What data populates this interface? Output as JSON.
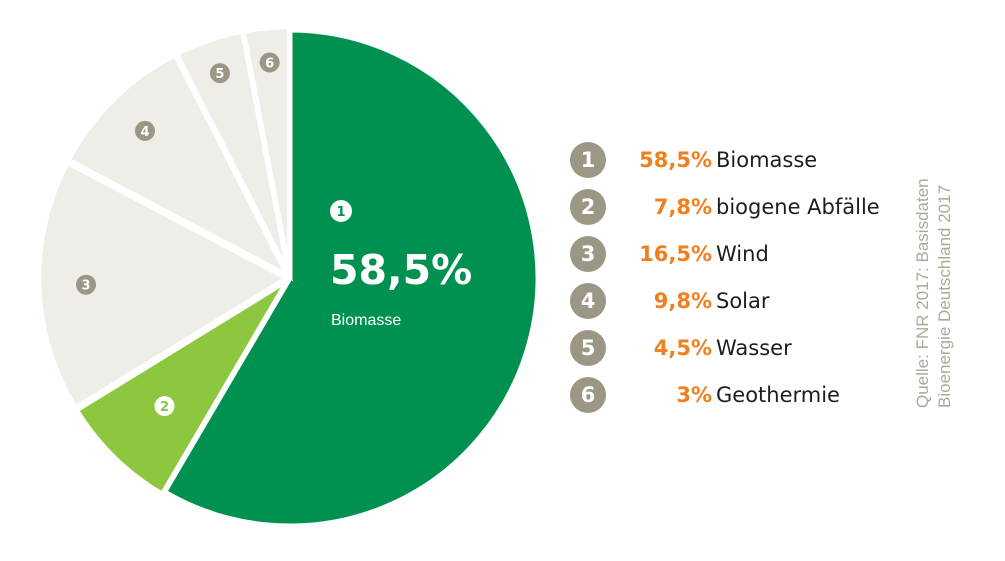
{
  "chart_data": {
    "type": "pie",
    "highlight": {
      "number": "1",
      "value": "58,5%",
      "label": "Biomasse"
    },
    "slices": [
      {
        "number": "1",
        "value": 58.5,
        "value_label": "58,5%",
        "label": "Biomasse",
        "color": "#009150"
      },
      {
        "number": "2",
        "value": 7.8,
        "value_label": "7,8%",
        "label": "biogene Abfälle",
        "color": "#8dc63f"
      },
      {
        "number": "3",
        "value": 16.5,
        "value_label": "16,5%",
        "label": "Wind",
        "color": "#efede8"
      },
      {
        "number": "4",
        "value": 9.8,
        "value_label": "9,8%",
        "label": "Solar",
        "color": "#efede8"
      },
      {
        "number": "5",
        "value": 4.5,
        "value_label": "4,5%",
        "label": "Wasser",
        "color": "#efede8"
      },
      {
        "number": "6",
        "value": 3,
        "value_label": "3%",
        "label": "Geothermie",
        "color": "#efede8"
      }
    ],
    "legend_position": "right"
  },
  "colors": {
    "badge": "#9b9784",
    "percent": "#f07f1d",
    "label": "#1d1d1b",
    "source": "#a8ab9a",
    "separator": "#ffffff"
  },
  "source": {
    "line1": "Quelle: FNR 2017: Basisdaten",
    "line2": "Bioenergie Deutschland 2017"
  }
}
